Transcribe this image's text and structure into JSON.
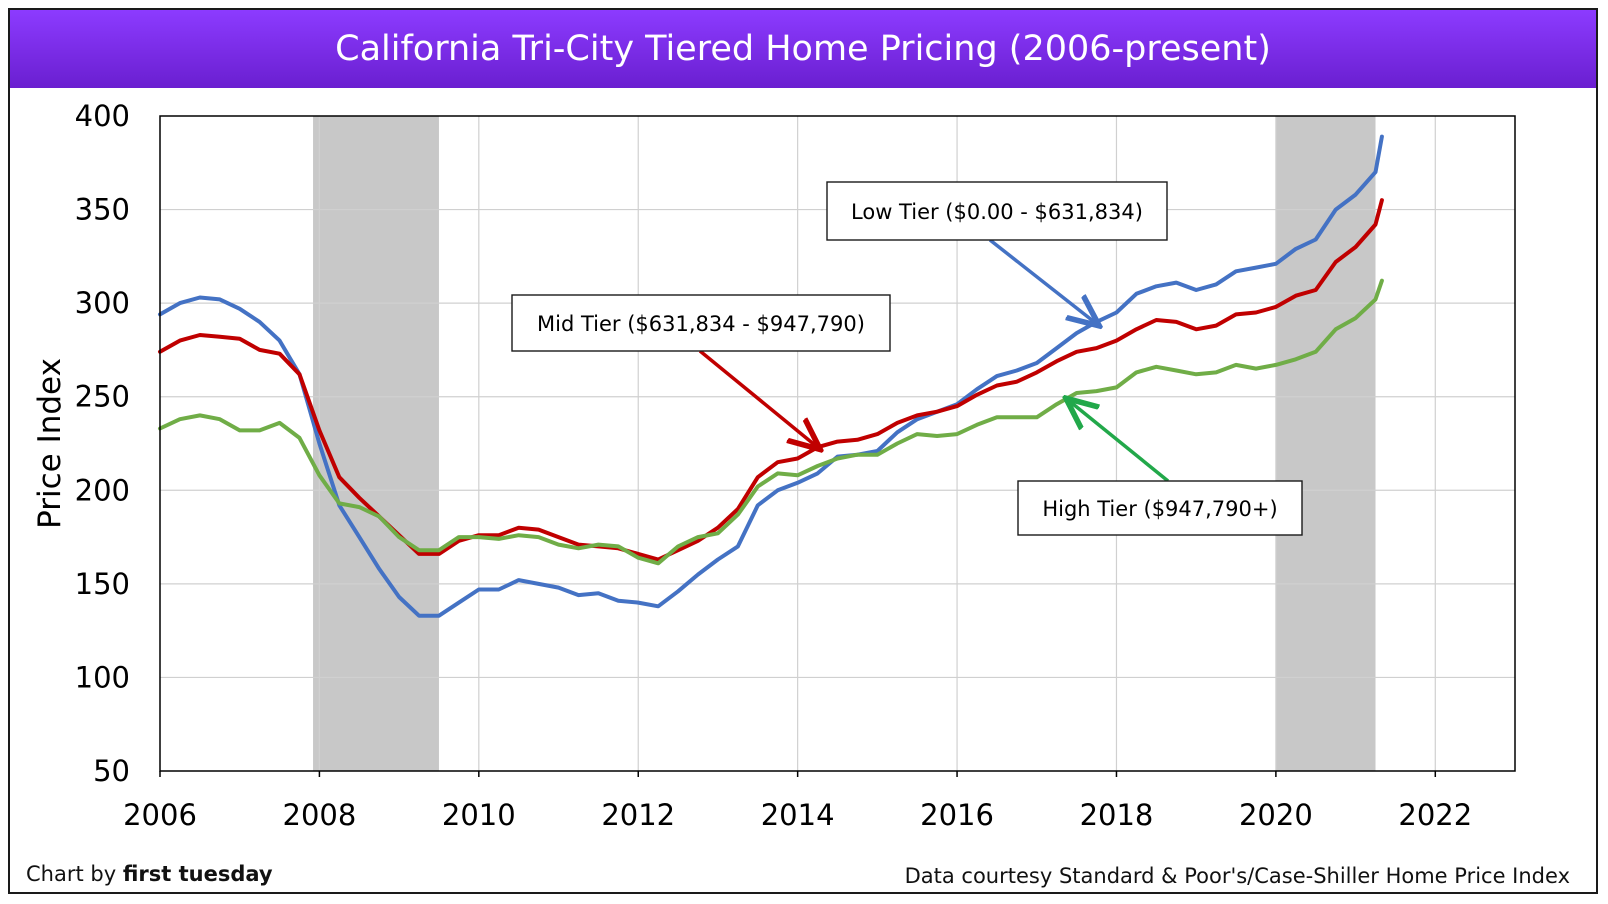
{
  "chart_data": {
    "type": "line",
    "title": "California Tri-City Tiered Home Pricing (2006-present)",
    "ylabel": "Price Index",
    "xlabel": "",
    "xlim": [
      2006,
      2023
    ],
    "ylim": [
      50,
      400
    ],
    "x_ticks": [
      2006,
      2008,
      2010,
      2012,
      2014,
      2016,
      2018,
      2020,
      2022
    ],
    "y_ticks": [
      50,
      100,
      150,
      200,
      250,
      300,
      350,
      400
    ],
    "grid": true,
    "recessions": [
      [
        2007.92,
        2009.5
      ],
      [
        2020.0,
        2021.25
      ]
    ],
    "series": [
      {
        "name": "Low Tier ($0.00 - $631,834)",
        "color": "#4472c4",
        "points": [
          [
            2006.0,
            294
          ],
          [
            2006.25,
            300
          ],
          [
            2006.5,
            303
          ],
          [
            2006.75,
            302
          ],
          [
            2007.0,
            297
          ],
          [
            2007.25,
            290
          ],
          [
            2007.5,
            280
          ],
          [
            2007.75,
            262
          ],
          [
            2008.0,
            225
          ],
          [
            2008.25,
            192
          ],
          [
            2008.5,
            175
          ],
          [
            2008.75,
            158
          ],
          [
            2009.0,
            143
          ],
          [
            2009.25,
            133
          ],
          [
            2009.5,
            133
          ],
          [
            2009.75,
            140
          ],
          [
            2010.0,
            147
          ],
          [
            2010.25,
            147
          ],
          [
            2010.5,
            152
          ],
          [
            2010.75,
            150
          ],
          [
            2011.0,
            148
          ],
          [
            2011.25,
            144
          ],
          [
            2011.5,
            145
          ],
          [
            2011.75,
            141
          ],
          [
            2012.0,
            140
          ],
          [
            2012.25,
            138
          ],
          [
            2012.5,
            146
          ],
          [
            2012.75,
            155
          ],
          [
            2013.0,
            163
          ],
          [
            2013.25,
            170
          ],
          [
            2013.5,
            192
          ],
          [
            2013.75,
            200
          ],
          [
            2014.0,
            204
          ],
          [
            2014.25,
            209
          ],
          [
            2014.5,
            218
          ],
          [
            2014.75,
            219
          ],
          [
            2015.0,
            221
          ],
          [
            2015.25,
            231
          ],
          [
            2015.5,
            238
          ],
          [
            2015.75,
            242
          ],
          [
            2016.0,
            246
          ],
          [
            2016.25,
            254
          ],
          [
            2016.5,
            261
          ],
          [
            2016.75,
            264
          ],
          [
            2017.0,
            268
          ],
          [
            2017.25,
            276
          ],
          [
            2017.5,
            284
          ],
          [
            2017.75,
            290
          ],
          [
            2018.0,
            295
          ],
          [
            2018.25,
            305
          ],
          [
            2018.5,
            309
          ],
          [
            2018.75,
            311
          ],
          [
            2019.0,
            307
          ],
          [
            2019.25,
            310
          ],
          [
            2019.5,
            317
          ],
          [
            2019.75,
            319
          ],
          [
            2020.0,
            321
          ],
          [
            2020.25,
            329
          ],
          [
            2020.5,
            334
          ],
          [
            2020.75,
            350
          ],
          [
            2021.0,
            358
          ],
          [
            2021.25,
            370
          ],
          [
            2021.33,
            389
          ]
        ]
      },
      {
        "name": "Mid Tier ($631,834 - $947,790)",
        "color": "#c00000",
        "points": [
          [
            2006.0,
            274
          ],
          [
            2006.25,
            280
          ],
          [
            2006.5,
            283
          ],
          [
            2006.75,
            282
          ],
          [
            2007.0,
            281
          ],
          [
            2007.25,
            275
          ],
          [
            2007.5,
            273
          ],
          [
            2007.75,
            262
          ],
          [
            2008.0,
            232
          ],
          [
            2008.25,
            207
          ],
          [
            2008.5,
            196
          ],
          [
            2008.75,
            186
          ],
          [
            2009.0,
            176
          ],
          [
            2009.25,
            166
          ],
          [
            2009.5,
            166
          ],
          [
            2009.75,
            173
          ],
          [
            2010.0,
            176
          ],
          [
            2010.25,
            176
          ],
          [
            2010.5,
            180
          ],
          [
            2010.75,
            179
          ],
          [
            2011.0,
            175
          ],
          [
            2011.25,
            171
          ],
          [
            2011.5,
            170
          ],
          [
            2011.75,
            169
          ],
          [
            2012.0,
            166
          ],
          [
            2012.25,
            163
          ],
          [
            2012.5,
            168
          ],
          [
            2012.75,
            173
          ],
          [
            2013.0,
            180
          ],
          [
            2013.25,
            190
          ],
          [
            2013.5,
            207
          ],
          [
            2013.75,
            215
          ],
          [
            2014.0,
            217
          ],
          [
            2014.25,
            223
          ],
          [
            2014.5,
            226
          ],
          [
            2014.75,
            227
          ],
          [
            2015.0,
            230
          ],
          [
            2015.25,
            236
          ],
          [
            2015.5,
            240
          ],
          [
            2015.75,
            242
          ],
          [
            2016.0,
            245
          ],
          [
            2016.25,
            251
          ],
          [
            2016.5,
            256
          ],
          [
            2016.75,
            258
          ],
          [
            2017.0,
            263
          ],
          [
            2017.25,
            269
          ],
          [
            2017.5,
            274
          ],
          [
            2017.75,
            276
          ],
          [
            2018.0,
            280
          ],
          [
            2018.25,
            286
          ],
          [
            2018.5,
            291
          ],
          [
            2018.75,
            290
          ],
          [
            2019.0,
            286
          ],
          [
            2019.25,
            288
          ],
          [
            2019.5,
            294
          ],
          [
            2019.75,
            295
          ],
          [
            2020.0,
            298
          ],
          [
            2020.25,
            304
          ],
          [
            2020.5,
            307
          ],
          [
            2020.75,
            322
          ],
          [
            2021.0,
            330
          ],
          [
            2021.25,
            342
          ],
          [
            2021.33,
            355
          ]
        ]
      },
      {
        "name": "High Tier ($947,790+)",
        "color": "#70ad47",
        "points": [
          [
            2006.0,
            233
          ],
          [
            2006.25,
            238
          ],
          [
            2006.5,
            240
          ],
          [
            2006.75,
            238
          ],
          [
            2007.0,
            232
          ],
          [
            2007.25,
            232
          ],
          [
            2007.5,
            236
          ],
          [
            2007.75,
            228
          ],
          [
            2008.0,
            208
          ],
          [
            2008.25,
            193
          ],
          [
            2008.5,
            191
          ],
          [
            2008.75,
            186
          ],
          [
            2009.0,
            175
          ],
          [
            2009.25,
            168
          ],
          [
            2009.5,
            168
          ],
          [
            2009.75,
            175
          ],
          [
            2010.0,
            175
          ],
          [
            2010.25,
            174
          ],
          [
            2010.5,
            176
          ],
          [
            2010.75,
            175
          ],
          [
            2011.0,
            171
          ],
          [
            2011.25,
            169
          ],
          [
            2011.5,
            171
          ],
          [
            2011.75,
            170
          ],
          [
            2012.0,
            164
          ],
          [
            2012.25,
            161
          ],
          [
            2012.5,
            170
          ],
          [
            2012.75,
            175
          ],
          [
            2013.0,
            177
          ],
          [
            2013.25,
            187
          ],
          [
            2013.5,
            202
          ],
          [
            2013.75,
            209
          ],
          [
            2014.0,
            208
          ],
          [
            2014.25,
            213
          ],
          [
            2014.5,
            217
          ],
          [
            2014.75,
            219
          ],
          [
            2015.0,
            219
          ],
          [
            2015.25,
            225
          ],
          [
            2015.5,
            230
          ],
          [
            2015.75,
            229
          ],
          [
            2016.0,
            230
          ],
          [
            2016.25,
            235
          ],
          [
            2016.5,
            239
          ],
          [
            2016.75,
            239
          ],
          [
            2017.0,
            239
          ],
          [
            2017.25,
            246
          ],
          [
            2017.5,
            252
          ],
          [
            2017.75,
            253
          ],
          [
            2018.0,
            255
          ],
          [
            2018.25,
            263
          ],
          [
            2018.5,
            266
          ],
          [
            2018.75,
            264
          ],
          [
            2019.0,
            262
          ],
          [
            2019.25,
            263
          ],
          [
            2019.5,
            267
          ],
          [
            2019.75,
            265
          ],
          [
            2020.0,
            267
          ],
          [
            2020.25,
            270
          ],
          [
            2020.5,
            274
          ],
          [
            2020.75,
            286
          ],
          [
            2021.0,
            292
          ],
          [
            2021.25,
            302
          ],
          [
            2021.33,
            312
          ]
        ]
      }
    ],
    "annotations": [
      {
        "text": "Low Tier ($0.00 - $631,834)",
        "series": 0,
        "arrow_to": [
          2017.75,
          289
        ]
      },
      {
        "text": "Mid Tier ($631,834 - $947,790)",
        "series": 1,
        "arrow_to": [
          2014.25,
          223
        ]
      },
      {
        "text": "High Tier ($947,790+)",
        "series": 2,
        "arrow_to": [
          2017.4,
          248
        ]
      }
    ]
  },
  "footer": {
    "credit_prefix": "Chart by ",
    "credit_brand": "first tuesday",
    "source": "Data courtesy Standard & Poor's/Case-Shiller Home Price Index"
  }
}
